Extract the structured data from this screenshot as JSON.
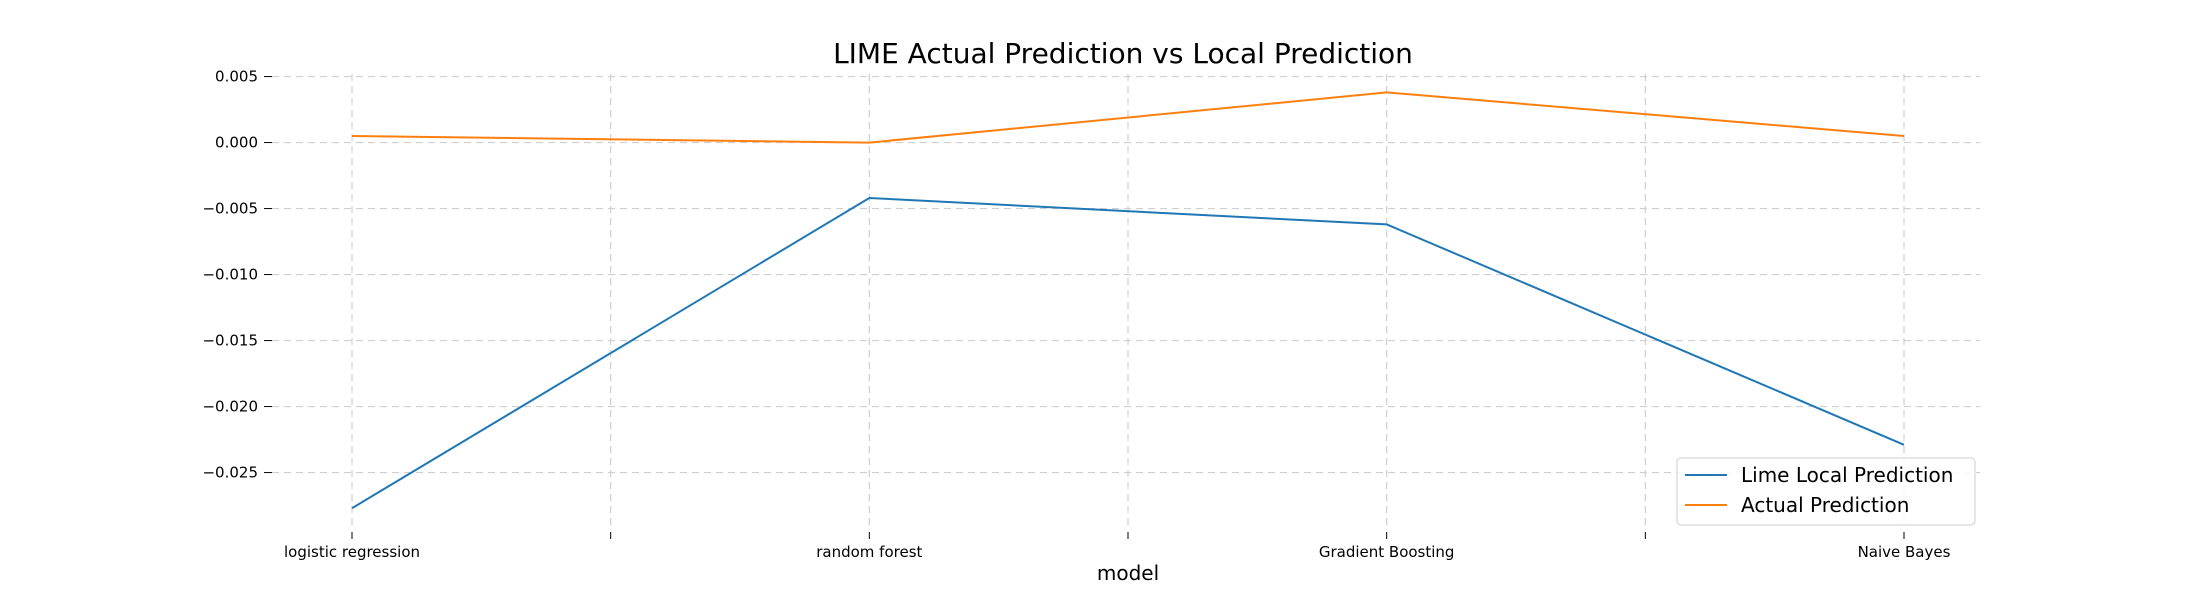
{
  "chart_data": {
    "type": "line",
    "title": "LIME Actual Prediction vs Local Prediction",
    "xlabel": "model",
    "ylabel": "",
    "categories": [
      "logistic regression",
      "random forest",
      "Gradient Boosting",
      "Naive Bayes"
    ],
    "series": [
      {
        "name": "Lime Local Prediction",
        "color": "#1f77b4",
        "values": [
          -0.0277,
          -0.0042,
          -0.0062,
          -0.0229
        ]
      },
      {
        "name": "Actual Prediction",
        "color": "#ff7f0e",
        "values": [
          0.0005,
          0.0,
          0.0038,
          0.0005
        ]
      }
    ],
    "ylim": [
      -0.0292,
      0.0058
    ],
    "yticks": [
      0.005,
      0.0,
      -0.005,
      -0.01,
      -0.015,
      -0.02,
      -0.025
    ],
    "ytick_labels": [
      "0.005",
      "0.000",
      "−0.005",
      "−0.010",
      "−0.015",
      "−0.020",
      "−0.025"
    ],
    "minor_xticks": true,
    "grid": true,
    "legend_position": "lower-right"
  }
}
